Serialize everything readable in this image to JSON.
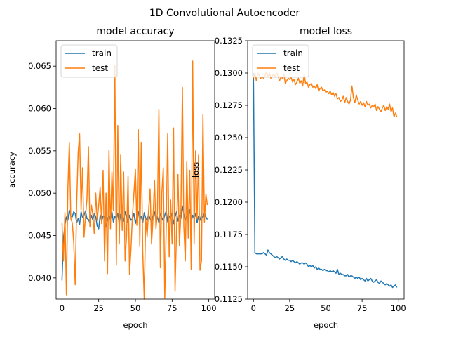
{
  "chart_data": {
    "suptitle": "1D Convolutional Autoencoder",
    "charts": [
      {
        "type": "line",
        "title": "model accuracy",
        "xlabel": "epoch",
        "ylabel": "accuracy",
        "xlim": [
          -4,
          104
        ],
        "ylim": [
          0.0375,
          0.068
        ],
        "xticks": [
          0,
          25,
          50,
          75,
          100
        ],
        "xtick_labels": [
          "0",
          "25",
          "50",
          "75",
          "100"
        ],
        "yticks": [
          0.04,
          0.045,
          0.05,
          0.055,
          0.06,
          0.065
        ],
        "ytick_labels": [
          "0.040",
          "0.045",
          "0.050",
          "0.055",
          "0.060",
          "0.065"
        ],
        "legend": "upper left",
        "series": [
          {
            "name": "train",
            "color": "#1f77b4",
            "values": [
              0.0397,
              0.0447,
              0.0462,
              0.0472,
              0.0468,
              0.048,
              0.0473,
              0.0472,
              0.0478,
              0.0476,
              0.0465,
              0.047,
              0.0463,
              0.0478,
              0.0471,
              0.0474,
              0.0479,
              0.047,
              0.0469,
              0.0465,
              0.0474,
              0.0468,
              0.0476,
              0.0472,
              0.0461,
              0.0458,
              0.0474,
              0.0467,
              0.0473,
              0.0472,
              0.046,
              0.047,
              0.0474,
              0.0468,
              0.0478,
              0.0466,
              0.0473,
              0.0469,
              0.0476,
              0.0464,
              0.0475,
              0.0471,
              0.0467,
              0.0478,
              0.0472,
              0.0465,
              0.0474,
              0.0468,
              0.047,
              0.0476,
              0.0464,
              0.0472,
              0.0478,
              0.0468,
              0.0473,
              0.0465,
              0.0477,
              0.0471,
              0.0468,
              0.0475,
              0.047,
              0.0466,
              0.0474,
              0.0478,
              0.0469,
              0.0472,
              0.0465,
              0.0476,
              0.0471,
              0.0467,
              0.0474,
              0.0479,
              0.0466,
              0.0473,
              0.047,
              0.0476,
              0.0464,
              0.0472,
              0.0478,
              0.0467,
              0.0474,
              0.047,
              0.0485,
              0.0475,
              0.0468,
              0.0473,
              0.047,
              0.0481,
              0.0466,
              0.0474,
              0.047,
              0.0476,
              0.0465,
              0.0473,
              0.0468,
              0.0475,
              0.0471,
              0.0477,
              0.0472,
              0.0469
            ]
          },
          {
            "name": "test",
            "color": "#ff7f0e",
            "values": [
              0.0465,
              0.042,
              0.0477,
              0.038,
              0.0505,
              0.056,
              0.047,
              0.0465,
              0.0442,
              0.0392,
              0.0488,
              0.0548,
              0.057,
              0.048,
              0.053,
              0.0448,
              0.0473,
              0.0493,
              0.0555,
              0.046,
              0.0486,
              0.0475,
              0.0452,
              0.05,
              0.0468,
              0.0486,
              0.0507,
              0.0464,
              0.0527,
              0.042,
              0.05,
              0.0405,
              0.0551,
              0.0458,
              0.0525,
              0.048,
              0.0651,
              0.0415,
              0.058,
              0.044,
              0.0545,
              0.0456,
              0.0525,
              0.042,
              0.045,
              0.052,
              0.0404,
              0.0435,
              0.0474,
              0.05,
              0.0528,
              0.0462,
              0.0575,
              0.0437,
              0.056,
              0.0431,
              0.0375,
              0.047,
              0.0449,
              0.048,
              0.0505,
              0.044,
              0.047,
              0.0515,
              0.0458,
              0.0477,
              0.0599,
              0.0412,
              0.05,
              0.053,
              0.0376,
              0.046,
              0.057,
              0.0425,
              0.0492,
              0.044,
              0.0577,
              0.0384,
              0.0455,
              0.0522,
              0.0438,
              0.0478,
              0.0625,
              0.046,
              0.042,
              0.0537,
              0.0447,
              0.0527,
              0.041,
              0.0656,
              0.044,
              0.055,
              0.047,
              0.0545,
              0.0409,
              0.042,
              0.0593,
              0.0466,
              0.0499,
              0.0486
            ]
          }
        ]
      },
      {
        "type": "line",
        "title": "model loss",
        "xlabel": "epoch",
        "ylabel": "loss",
        "xlim": [
          -4,
          104
        ],
        "ylim": [
          0.1125,
          0.1325
        ],
        "xticks": [
          0,
          25,
          50,
          75,
          100
        ],
        "xtick_labels": [
          "0",
          "25",
          "50",
          "75",
          "100"
        ],
        "yticks": [
          0.1125,
          0.115,
          0.1175,
          0.12,
          0.1225,
          0.125,
          0.1275,
          0.13,
          0.1325
        ],
        "ytick_labels": [
          "0.1125",
          "0.1150",
          "0.1175",
          "0.1200",
          "0.1225",
          "0.1250",
          "0.1275",
          "0.1300",
          "0.1325"
        ],
        "legend": "upper left",
        "series": [
          {
            "name": "train",
            "color": "#1f77b4",
            "values": [
              0.13,
              0.1161,
              0.116,
              0.116,
              0.116,
              0.116,
              0.116,
              0.1161,
              0.116,
              0.1159,
              0.1163,
              0.1161,
              0.116,
              0.1159,
              0.1158,
              0.1157,
              0.1158,
              0.1157,
              0.1156,
              0.1157,
              0.1158,
              0.1156,
              0.1155,
              0.1156,
              0.1155,
              0.1155,
              0.1154,
              0.1155,
              0.1154,
              0.1153,
              0.1154,
              0.1153,
              0.1152,
              0.1153,
              0.1153,
              0.1152,
              0.1153,
              0.1152,
              0.115,
              0.1151,
              0.115,
              0.1151,
              0.1149,
              0.115,
              0.1148,
              0.1149,
              0.1148,
              0.1148,
              0.1147,
              0.1148,
              0.1147,
              0.1147,
              0.1146,
              0.1147,
              0.1146,
              0.1147,
              0.1146,
              0.1145,
              0.1148,
              0.1144,
              0.1145,
              0.1144,
              0.1144,
              0.1143,
              0.1143,
              0.1144,
              0.1142,
              0.1143,
              0.1143,
              0.1142,
              0.1141,
              0.1142,
              0.1141,
              0.1142,
              0.114,
              0.1141,
              0.114,
              0.1139,
              0.1141,
              0.1139,
              0.114,
              0.1141,
              0.1139,
              0.1138,
              0.1139,
              0.114,
              0.1138,
              0.1137,
              0.1139,
              0.1138,
              0.1137,
              0.1136,
              0.1137,
              0.1136,
              0.1135,
              0.1136,
              0.1134,
              0.1135,
              0.1136,
              0.1134
            ]
          },
          {
            "name": "test",
            "color": "#ff7f0e",
            "values": [
              0.1296,
              0.13,
              0.1294,
              0.13,
              0.1298,
              0.1296,
              0.1297,
              0.1296,
              0.1298,
              0.1301,
              0.1297,
              0.13,
              0.1296,
              0.1298,
              0.1299,
              0.1297,
              0.13,
              0.1298,
              0.1294,
              0.1297,
              0.1296,
              0.1299,
              0.1292,
              0.1294,
              0.1296,
              0.1295,
              0.1297,
              0.1293,
              0.1295,
              0.1291,
              0.1293,
              0.1296,
              0.1292,
              0.1294,
              0.129,
              0.1299,
              0.1292,
              0.1293,
              0.1289,
              0.1291,
              0.1292,
              0.1289,
              0.129,
              0.1288,
              0.1291,
              0.1286,
              0.1288,
              0.1289,
              0.1286,
              0.1287,
              0.1285,
              0.1286,
              0.1284,
              0.1286,
              0.1283,
              0.1285,
              0.1282,
              0.1284,
              0.128,
              0.1281,
              0.1278,
              0.1279,
              0.1282,
              0.1277,
              0.1281,
              0.1278,
              0.1276,
              0.1279,
              0.129,
              0.1281,
              0.1277,
              0.1283,
              0.1279,
              0.1276,
              0.1278,
              0.1275,
              0.1277,
              0.1274,
              0.1278,
              0.1275,
              0.1276,
              0.1273,
              0.1275,
              0.1274,
              0.1276,
              0.1271,
              0.1274,
              0.1272,
              0.127,
              0.1273,
              0.1275,
              0.1271,
              0.1274,
              0.1272,
              0.1276,
              0.127,
              0.1273,
              0.1266,
              0.1269,
              0.1266
            ]
          }
        ]
      }
    ]
  }
}
